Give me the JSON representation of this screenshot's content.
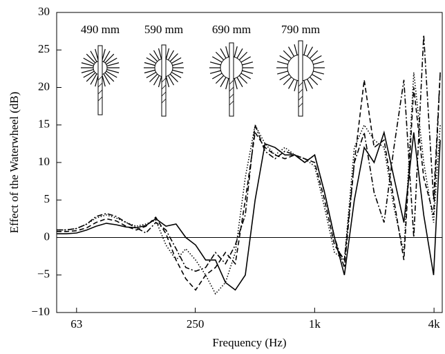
{
  "chart_data": {
    "type": "line",
    "x_label": "Frequency (Hz)",
    "y_label": "Effect of the Waterwheel (dB)",
    "log_x": true,
    "xlim": [
      50,
      4400
    ],
    "xticks": [
      63,
      250,
      {
        "value": 1000,
        "label": "1k"
      },
      {
        "value": 4000,
        "label": "4k"
      }
    ],
    "ylim": [
      -10,
      30
    ],
    "yticks": [
      {
        "value": -10,
        "label": "−10"
      },
      {
        "value": -5,
        "label": "−5"
      },
      0,
      5,
      10,
      15,
      20,
      25,
      30
    ],
    "x": [
      50,
      56,
      63,
      71,
      79,
      89,
      100,
      112,
      126,
      141,
      158,
      178,
      200,
      224,
      251,
      282,
      316,
      355,
      398,
      447,
      501,
      562,
      631,
      708,
      794,
      891,
      1000,
      1122,
      1259,
      1413,
      1585,
      1778,
      1995,
      2239,
      2512,
      2818,
      3162,
      3548,
      3981,
      4300
    ],
    "series": [
      {
        "name": "490 mm",
        "color": "#000000",
        "linestyle": "solid",
        "values": [
          0.5,
          0.5,
          0.6,
          1.0,
          1.5,
          1.9,
          1.7,
          1.4,
          1.3,
          1.6,
          2.5,
          1.5,
          1.8,
          0.0,
          -1.0,
          -3.0,
          -3.0,
          -6.0,
          -7.0,
          -5.0,
          5,
          12.5,
          12,
          11,
          11,
          10,
          11,
          6,
          0,
          -5,
          5,
          12,
          10,
          14,
          8,
          2,
          14,
          3,
          -5,
          13
        ]
      },
      {
        "name": "590 mm",
        "color": "#000000",
        "linestyle": "dashed",
        "values": [
          0.8,
          0.8,
          0.9,
          1.3,
          2.0,
          2.5,
          2.2,
          1.5,
          1.0,
          1.5,
          2.7,
          0.5,
          -3.0,
          -5.5,
          -7.0,
          -5.0,
          -4.0,
          -2.0,
          -3.5,
          5,
          14,
          12,
          11,
          10.5,
          11,
          10.5,
          10,
          5,
          -1,
          -3,
          10,
          21,
          12,
          13,
          5,
          -3,
          20,
          8,
          3,
          22
        ]
      },
      {
        "name": "690 mm",
        "color": "#000000",
        "linestyle": "dotted",
        "values": [
          1.0,
          1.0,
          1.2,
          1.8,
          2.6,
          3.0,
          2.6,
          2.0,
          1.5,
          1.8,
          2.3,
          -1.0,
          -3.0,
          -1.5,
          -3.0,
          -5.0,
          -7.5,
          -6.0,
          -2.0,
          8,
          15,
          12.5,
          11,
          12,
          11,
          10.5,
          9.5,
          4,
          -2,
          -3,
          12,
          15,
          13,
          12,
          4,
          -2,
          22,
          10,
          2,
          15
        ]
      },
      {
        "name": "790 mm",
        "color": "#000000",
        "linestyle": "dashdot",
        "values": [
          1.0,
          1.0,
          1.2,
          1.8,
          2.8,
          3.2,
          2.8,
          2.0,
          1.3,
          0.6,
          2.0,
          1.0,
          -1.5,
          -4.0,
          -4.5,
          -4.0,
          -2.0,
          -3.5,
          -1.0,
          3,
          15,
          11.5,
          10.5,
          11.5,
          11,
          10,
          11,
          6,
          0,
          -4,
          10,
          14,
          6,
          2,
          12,
          21,
          0,
          27,
          5,
          22
        ]
      }
    ]
  }
}
